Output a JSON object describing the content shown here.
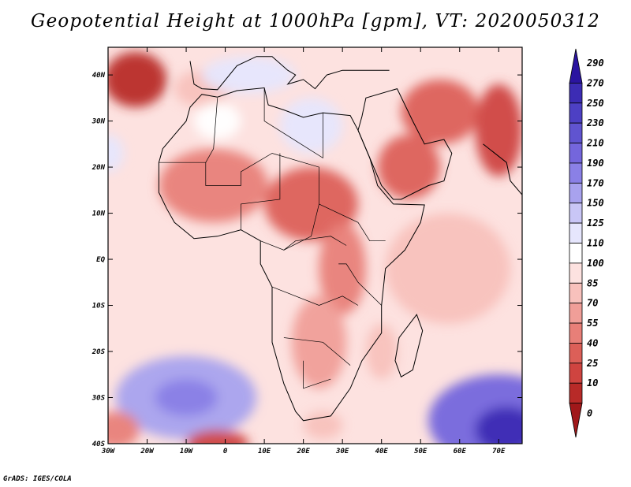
{
  "title": "Geopotential Height at 1000hPa [gpm], VT: 2020050312",
  "credit": "GrADS: IGES/COLA",
  "map": {
    "lon_range": [
      -30,
      76
    ],
    "lat_range": [
      -40,
      46
    ],
    "lat_ticks": [
      {
        "value": 40,
        "label": "40N"
      },
      {
        "value": 30,
        "label": "30N"
      },
      {
        "value": 20,
        "label": "20N"
      },
      {
        "value": 10,
        "label": "10N"
      },
      {
        "value": 0,
        "label": "EQ"
      },
      {
        "value": -10,
        "label": "10S"
      },
      {
        "value": -20,
        "label": "20S"
      },
      {
        "value": -30,
        "label": "30S"
      },
      {
        "value": -40,
        "label": "40S"
      }
    ],
    "lon_ticks": [
      {
        "value": -30,
        "label": "30W"
      },
      {
        "value": -20,
        "label": "20W"
      },
      {
        "value": -10,
        "label": "10W"
      },
      {
        "value": 0,
        "label": "0"
      },
      {
        "value": 10,
        "label": "10E"
      },
      {
        "value": 20,
        "label": "20E"
      },
      {
        "value": 30,
        "label": "30E"
      },
      {
        "value": 40,
        "label": "40E"
      },
      {
        "value": 50,
        "label": "50E"
      },
      {
        "value": 60,
        "label": "60E"
      },
      {
        "value": 70,
        "label": "70E"
      }
    ],
    "background_value": 107,
    "features": [
      {
        "name": "subtropical-high-east-atlantic",
        "lon": -23,
        "lat": 39,
        "rx": 8,
        "ry": 6,
        "value": 12
      },
      {
        "name": "iberia-low",
        "lon": -6,
        "lat": 37,
        "rx": 7,
        "ry": 4,
        "value": 90
      },
      {
        "name": "mediterranean-ridge",
        "lon": 6,
        "lat": 40,
        "rx": 12,
        "ry": 4,
        "value": 135
      },
      {
        "name": "sahara-west-anomaly",
        "lon": -2,
        "lat": 30,
        "rx": 6,
        "ry": 4,
        "value": 120
      },
      {
        "name": "libya-egypt-ridge",
        "lon": 22,
        "lat": 29,
        "rx": 8,
        "ry": 6,
        "value": 125
      },
      {
        "name": "sahel-low-west",
        "lon": -3,
        "lat": 16,
        "rx": 14,
        "ry": 8,
        "value": 65
      },
      {
        "name": "sahel-low-central",
        "lon": 22,
        "lat": 12,
        "rx": 12,
        "ry": 8,
        "value": 45
      },
      {
        "name": "arabian-low",
        "lon": 47,
        "lat": 20,
        "rx": 8,
        "ry": 7,
        "value": 48
      },
      {
        "name": "persian-low",
        "lon": 55,
        "lat": 32,
        "rx": 10,
        "ry": 7,
        "value": 45
      },
      {
        "name": "pakistan-low",
        "lon": 70,
        "lat": 28,
        "rx": 6,
        "ry": 10,
        "value": 30
      },
      {
        "name": "east-africa-low",
        "lon": 30,
        "lat": -2,
        "rx": 6,
        "ry": 10,
        "value": 65
      },
      {
        "name": "south-africa-low",
        "lon": 24,
        "lat": -18,
        "rx": 7,
        "ry": 10,
        "value": 75
      },
      {
        "name": "indian-ocean-trough",
        "lon": 57,
        "lat": -2,
        "rx": 16,
        "ry": 12,
        "value": 88
      },
      {
        "name": "mozambique-trough",
        "lon": 40,
        "lat": -20,
        "rx": 4,
        "ry": 6,
        "value": 95
      },
      {
        "name": "south-atlantic-high",
        "lon": -10,
        "lat": -30,
        "rx": 18,
        "ry": 9,
        "value": 175
      },
      {
        "name": "south-atlantic-core",
        "lon": -10,
        "lat": -30,
        "rx": 8,
        "ry": 4,
        "value": 195
      },
      {
        "name": "south-indian-high",
        "lon": 70,
        "lat": -35,
        "rx": 18,
        "ry": 10,
        "value": 220
      },
      {
        "name": "south-indian-core",
        "lon": 72,
        "lat": -37,
        "rx": 8,
        "ry": 5,
        "value": 270
      },
      {
        "name": "agulhas-red",
        "lon": 25,
        "lat": -36,
        "rx": 5,
        "ry": 3,
        "value": 95
      },
      {
        "name": "southwest-atlantic-low",
        "lon": -28,
        "lat": -37,
        "rx": 6,
        "ry": 4,
        "value": 55
      },
      {
        "name": "south-central-low",
        "lon": -2,
        "lat": -40,
        "rx": 8,
        "ry": 3,
        "value": 30
      },
      {
        "name": "west-atlantic-blue",
        "lon": -30,
        "lat": 23,
        "rx": 4,
        "ry": 4,
        "value": 140
      }
    ]
  },
  "colorbar": {
    "levels": [
      "290",
      "270",
      "250",
      "230",
      "210",
      "190",
      "170",
      "150",
      "125",
      "110",
      "100",
      "85",
      "70",
      "55",
      "40",
      "25",
      "10",
      "0"
    ],
    "colors": [
      "#2b14a0",
      "#3c2cb4",
      "#4d40c4",
      "#6054d0",
      "#7466dc",
      "#8a80e6",
      "#a8a2ee",
      "#c9c6f6",
      "#e6e6fd",
      "#ffffff",
      "#fde2e0",
      "#f8c1bc",
      "#f09e98",
      "#e87f78",
      "#dc5f58",
      "#cf4440",
      "#b82a28",
      "#a0181a"
    ]
  }
}
